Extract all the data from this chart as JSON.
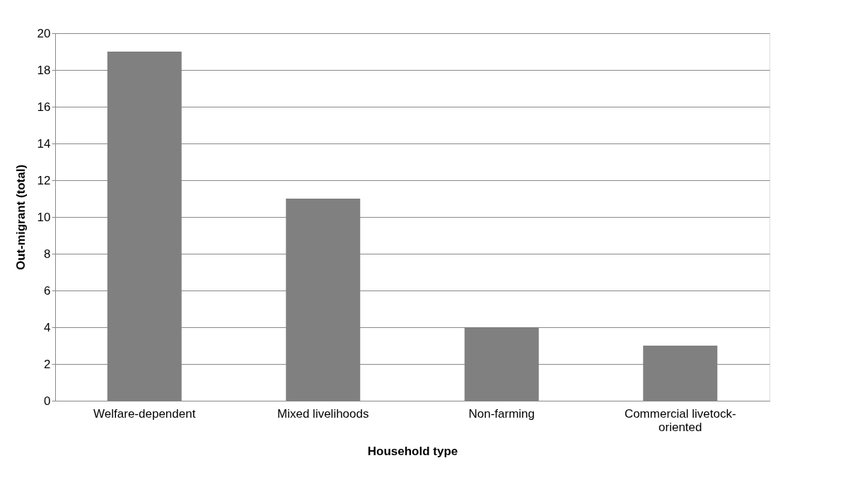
{
  "chart_data": {
    "type": "bar",
    "xlabel": "Household type",
    "ylabel": "Out-migrant (total)",
    "categories": [
      "Welfare-dependent",
      "Mixed livelihoods",
      "Non-farming",
      "Commercial livetock-oriented"
    ],
    "values": [
      19,
      11,
      4,
      3
    ],
    "color": "#808080",
    "ylim": [
      0,
      20
    ],
    "yticks": [
      0,
      2,
      4,
      6,
      8,
      10,
      12,
      14,
      16,
      18,
      20
    ],
    "grid": "y"
  }
}
